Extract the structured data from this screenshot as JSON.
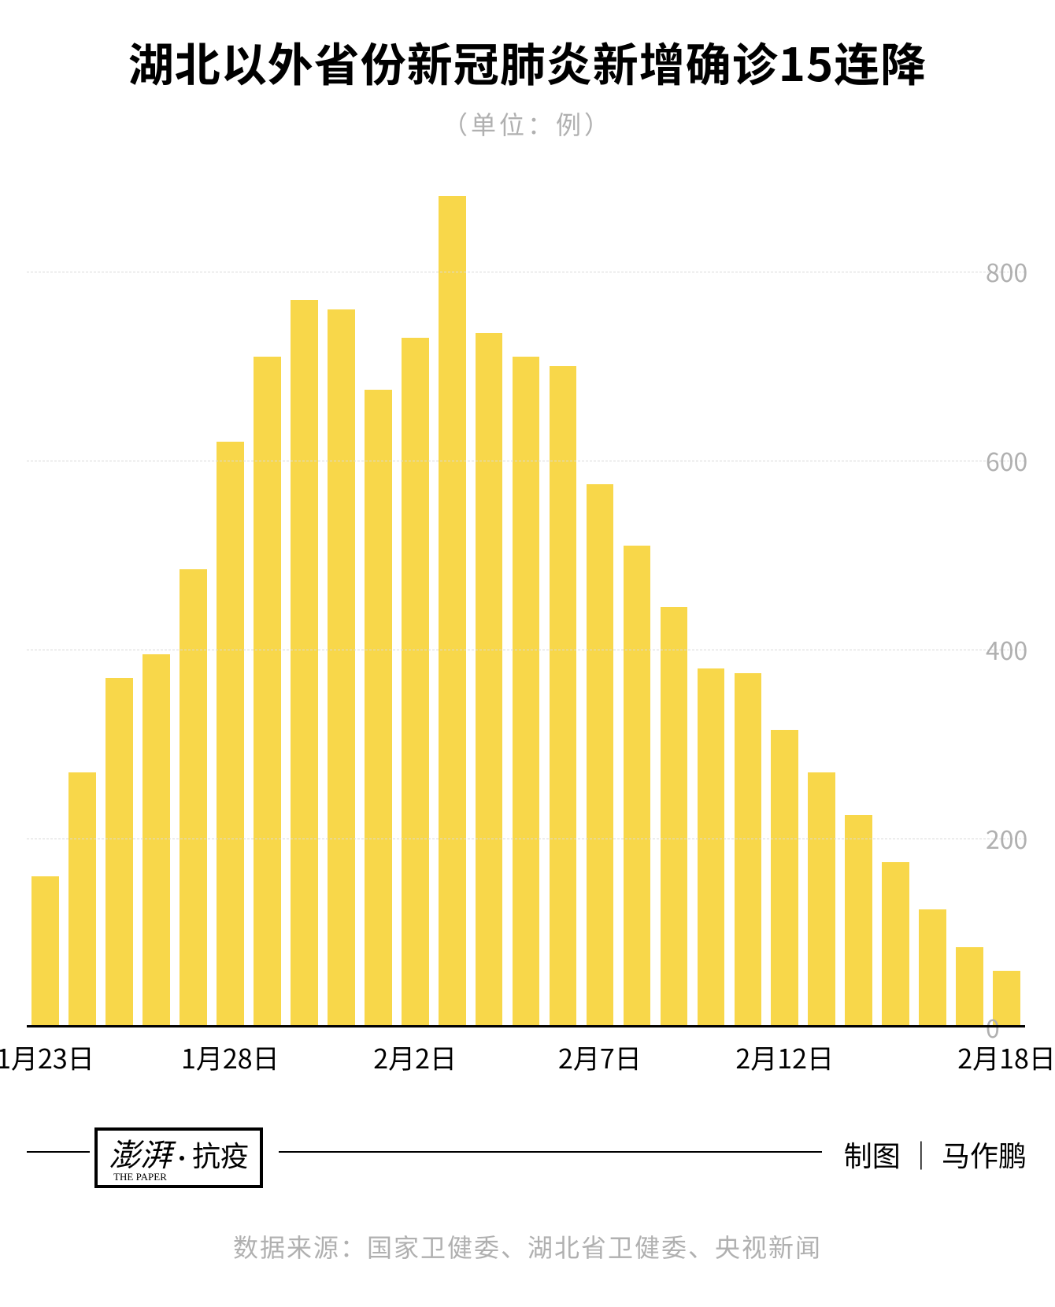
{
  "title": "湖北以外省份新冠肺炎新增确诊15连降",
  "subtitle": "（单位：例）",
  "chart": {
    "type": "bar",
    "ylim": [
      0,
      900
    ],
    "bar_color": "#f8d74a",
    "bar_width_ratio": 0.74,
    "background_color": "#ffffff",
    "grid_color": "#d9d9d9",
    "grid_dash": true,
    "axis_color": "#000000",
    "y_ticks": [
      0,
      200,
      400,
      600,
      800
    ],
    "y_tick_color": "#b0b0b0",
    "y_tick_fontsize": 32,
    "title_fontsize": 58,
    "title_color": "#000000",
    "subtitle_fontsize": 32,
    "subtitle_color": "#b0b0b0",
    "x_labels": [
      {
        "index": 0,
        "label": "1月23日"
      },
      {
        "index": 5,
        "label": "1月28日"
      },
      {
        "index": 10,
        "label": "2月2日"
      },
      {
        "index": 15,
        "label": "2月7日"
      },
      {
        "index": 20,
        "label": "2月12日"
      },
      {
        "index": 26,
        "label": "2月18日"
      }
    ],
    "values": [
      160,
      270,
      370,
      395,
      485,
      620,
      710,
      770,
      760,
      675,
      730,
      880,
      735,
      710,
      700,
      575,
      510,
      445,
      380,
      375,
      315,
      270,
      225,
      175,
      125,
      85,
      60
    ]
  },
  "credit": {
    "badge_script": "澎湃",
    "badge_sub": "THE  PAPER",
    "badge_plain": "抗疫",
    "author_label": "制图",
    "author_name": "马作鹏"
  },
  "source": "数据来源：国家卫健委、湖北省卫健委、央视新闻",
  "x_label_fontsize": 34,
  "credit_fontsize": 36,
  "source_fontsize": 32,
  "source_color": "#b0b0b0"
}
